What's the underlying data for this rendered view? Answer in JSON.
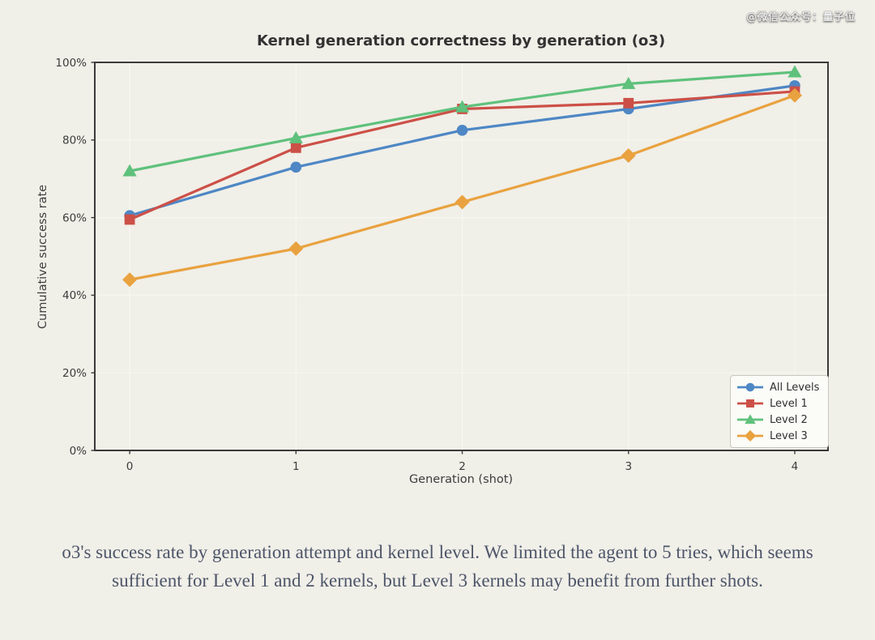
{
  "watermark": "@微信公众号：量子位",
  "chart_data": {
    "type": "line",
    "title": "Kernel generation correctness by generation (o3)",
    "xlabel": "Generation (shot)",
    "ylabel": "Cumulative success rate",
    "x": [
      0,
      1,
      2,
      3,
      4
    ],
    "x_tick_labels": [
      "0",
      "1",
      "2",
      "3",
      "4"
    ],
    "y_ticks": [
      0,
      20,
      40,
      60,
      80,
      100
    ],
    "y_tick_suffix": "%",
    "xlim": [
      -0.21,
      4.2
    ],
    "ylim": [
      0,
      100
    ],
    "grid": true,
    "legend_position": "lower right",
    "series": [
      {
        "name": "All Levels",
        "marker": "circle",
        "color": "#4e87c5",
        "values": [
          60.5,
          73,
          82.5,
          88,
          94
        ]
      },
      {
        "name": "Level 1",
        "marker": "square",
        "color": "#cc5047",
        "values": [
          59.5,
          78,
          88,
          89.5,
          92.5
        ]
      },
      {
        "name": "Level 2",
        "marker": "triangle",
        "color": "#5fc17c",
        "values": [
          72,
          80.5,
          88.5,
          94.5,
          97.5
        ]
      },
      {
        "name": "Level 3",
        "marker": "diamond",
        "color": "#e9a23f",
        "values": [
          44,
          52,
          64,
          76,
          91.5
        ]
      }
    ]
  },
  "caption": {
    "text": "o3's success rate by generation attempt and kernel level. We limited the agent to 5 tries, which seems sufficient for Level 1 and 2 kernels, but Level 3 kernels may benefit from further shots."
  }
}
